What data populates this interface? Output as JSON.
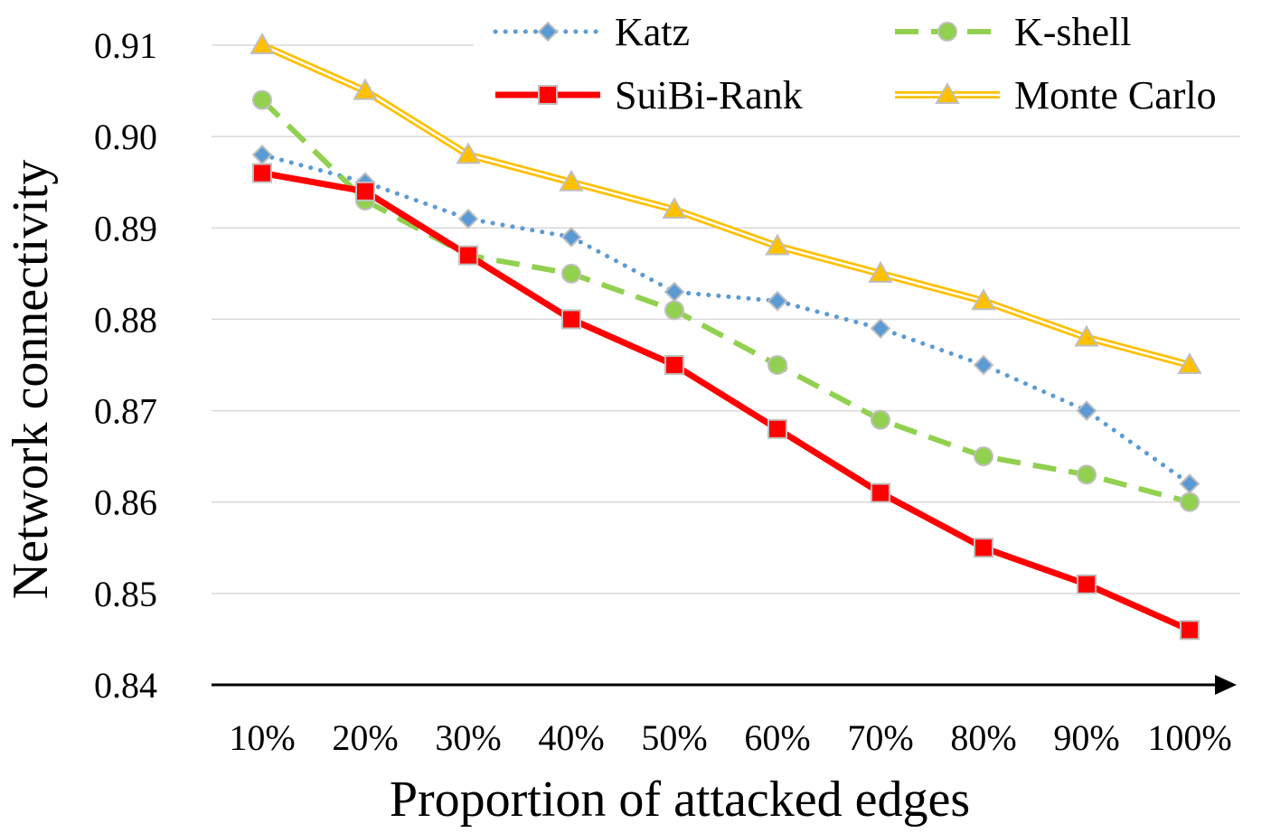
{
  "chart_data": {
    "type": "line",
    "title": "",
    "xlabel": "Proportion of attacked edges",
    "ylabel": "Network connectivity",
    "categories": [
      "10%",
      "20%",
      "30%",
      "40%",
      "50%",
      "60%",
      "70%",
      "80%",
      "90%",
      "100%"
    ],
    "ylim": [
      0.84,
      0.91
    ],
    "yticks": [
      "0.84",
      "0.85",
      "0.86",
      "0.87",
      "0.88",
      "0.89",
      "0.90",
      "0.91"
    ],
    "grid": true,
    "legend_position": "top",
    "series": [
      {
        "name": "Katz",
        "style": "dotted",
        "marker": "diamond",
        "color": "#5B9BD5",
        "values": [
          0.898,
          0.895,
          0.891,
          0.889,
          0.883,
          0.882,
          0.879,
          0.875,
          0.87,
          0.862
        ]
      },
      {
        "name": "K-shell",
        "style": "dashed",
        "marker": "circle",
        "color": "#92D050",
        "values": [
          0.904,
          0.893,
          0.887,
          0.885,
          0.881,
          0.875,
          0.869,
          0.865,
          0.863,
          0.86
        ]
      },
      {
        "name": "SuiBi-Rank",
        "style": "solid",
        "marker": "square",
        "color": "#FF0000",
        "values": [
          0.896,
          0.894,
          0.887,
          0.88,
          0.875,
          0.868,
          0.861,
          0.855,
          0.851,
          0.846
        ]
      },
      {
        "name": "Monte Carlo",
        "style": "double",
        "marker": "triangle",
        "color": "#FFC000",
        "values": [
          0.91,
          0.905,
          0.898,
          0.895,
          0.892,
          0.888,
          0.885,
          0.882,
          0.878,
          0.875
        ]
      }
    ]
  }
}
